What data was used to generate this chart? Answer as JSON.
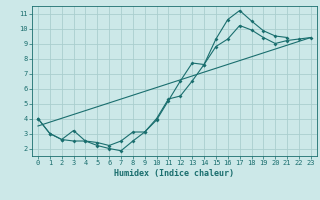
{
  "bg_color": "#cce8e8",
  "grid_color": "#aacece",
  "line_color": "#1a6e6e",
  "xlabel": "Humidex (Indice chaleur)",
  "xlim": [
    -0.5,
    23.5
  ],
  "ylim": [
    1.5,
    11.5
  ],
  "xticks": [
    0,
    1,
    2,
    3,
    4,
    5,
    6,
    7,
    8,
    9,
    10,
    11,
    12,
    13,
    14,
    15,
    16,
    17,
    18,
    19,
    20,
    21,
    22,
    23
  ],
  "yticks": [
    2,
    3,
    4,
    5,
    6,
    7,
    8,
    9,
    10,
    11
  ],
  "line1_x": [
    0,
    1,
    2,
    3,
    4,
    5,
    6,
    7,
    8,
    9,
    10,
    11,
    12,
    13,
    14,
    15,
    16,
    17,
    18,
    19,
    20,
    21
  ],
  "line1_y": [
    4.0,
    3.0,
    2.6,
    2.5,
    2.5,
    2.2,
    2.0,
    1.85,
    2.5,
    3.1,
    4.0,
    5.3,
    5.5,
    6.5,
    7.6,
    9.3,
    10.6,
    11.2,
    10.5,
    9.85,
    9.5,
    9.4
  ],
  "line2_x": [
    0,
    1,
    2,
    3,
    4,
    5,
    6,
    7,
    8,
    9,
    10,
    11,
    12,
    13,
    14,
    15,
    16,
    17,
    18,
    19,
    20,
    21,
    22,
    23
  ],
  "line2_y": [
    4.0,
    3.0,
    2.6,
    3.2,
    2.5,
    2.4,
    2.2,
    2.5,
    3.1,
    3.1,
    3.9,
    5.2,
    6.5,
    7.7,
    7.6,
    8.8,
    9.3,
    10.2,
    9.9,
    9.4,
    9.0,
    9.2,
    9.3,
    9.4
  ],
  "line3_x": [
    0,
    23
  ],
  "line3_y": [
    3.5,
    9.4
  ]
}
